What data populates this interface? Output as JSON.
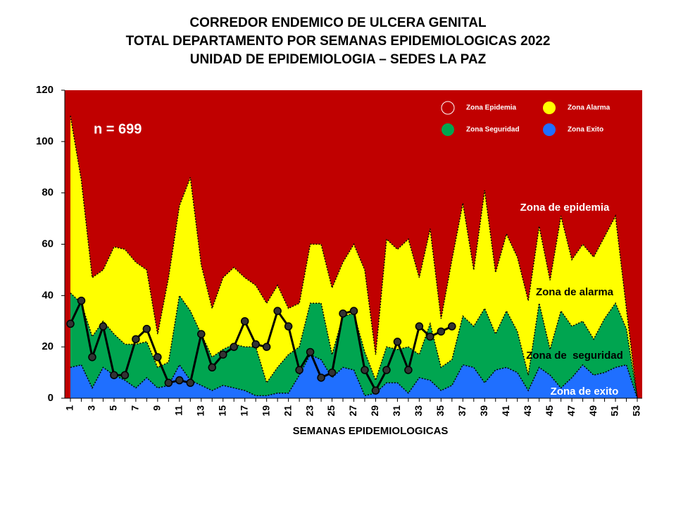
{
  "chart_data": {
    "type": "area",
    "title": [
      "CORREDOR ENDEMICO DE ULCERA GENITAL",
      "TOTAL DEPARTAMENTO POR SEMANAS EPIDEMIOLOGICAS 2022",
      "UNIDAD DE EPIDEMIOLOGIA – SEDES LA PAZ"
    ],
    "x_label": "SEMANAS EPIDEMIOLOGICAS",
    "categories": [
      "1",
      null,
      "3",
      null,
      "5",
      null,
      "7",
      null,
      "9",
      null,
      "11",
      null,
      "13",
      null,
      "15",
      null,
      "17",
      null,
      "19",
      null,
      "21",
      null,
      "23",
      null,
      "25",
      null,
      "27",
      null,
      "29",
      null,
      "31",
      null,
      "33",
      null,
      "35",
      null,
      "37",
      null,
      "39",
      null,
      "41",
      null,
      "43",
      null,
      "45",
      null,
      "47",
      null,
      "49",
      null,
      "51",
      null,
      "53"
    ],
    "background": {
      "name": "Zona Epidemia",
      "color": "#c00000"
    },
    "series": [
      {
        "name": "Zona Alarma",
        "color": "#ffff00",
        "values": [
          110,
          85,
          47,
          50,
          59,
          58,
          53,
          50,
          25,
          47,
          75,
          86,
          52,
          35,
          47,
          51,
          47,
          44,
          37,
          44,
          35,
          37,
          60,
          60,
          43,
          53,
          60,
          50,
          17,
          62,
          58,
          62,
          47,
          66,
          31,
          54,
          76,
          50,
          81,
          49,
          64,
          55,
          38,
          67,
          46,
          71,
          54,
          60,
          55,
          63,
          71,
          35,
          0
        ]
      },
      {
        "name": "Zona Seguridad",
        "color": "#00a550",
        "values": [
          41,
          37,
          24,
          30,
          25,
          21,
          21,
          22,
          12,
          14,
          40,
          34,
          25,
          16,
          19,
          21,
          20,
          20,
          6,
          12,
          17,
          20,
          37,
          37,
          17,
          32,
          33,
          18,
          7,
          20,
          19,
          20,
          17,
          29,
          12,
          15,
          32,
          28,
          35,
          25,
          34,
          26,
          9,
          37,
          19,
          34,
          28,
          30,
          23,
          31,
          37,
          27,
          0
        ]
      },
      {
        "name": "Zona Exito",
        "color": "#1f6fff",
        "values": [
          12,
          13,
          4,
          12,
          9,
          7,
          4,
          8,
          4,
          5,
          13,
          7,
          5,
          3,
          5,
          4,
          3,
          1,
          1,
          2,
          2,
          9,
          17,
          15,
          8,
          12,
          11,
          1,
          2,
          6,
          6,
          2,
          8,
          7,
          3,
          5,
          13,
          12,
          6,
          11,
          12,
          10,
          3,
          12,
          9,
          4,
          8,
          13,
          9,
          10,
          12,
          13,
          0
        ]
      }
    ],
    "cases": {
      "color": "#000000",
      "values": [
        29,
        38,
        16,
        28,
        9,
        9,
        23,
        27,
        16,
        6,
        7,
        6,
        25,
        12,
        17,
        20,
        30,
        21,
        20,
        34,
        28,
        11,
        18,
        8,
        10,
        33,
        34,
        11,
        3,
        11,
        22,
        11,
        28,
        24,
        26,
        28,
        null,
        null,
        null,
        null,
        null,
        null,
        null,
        null,
        null,
        null,
        null,
        null,
        null,
        null,
        null,
        null,
        null
      ]
    },
    "ylim": [
      0,
      120
    ],
    "yticks": [
      0,
      20,
      40,
      60,
      80,
      100,
      120
    ],
    "grid": false,
    "legend": "upper right",
    "annotations": [
      "n = 699",
      "Zona de epidemia",
      "Zona de alarma",
      "Zona de  seguridad",
      "Zona de exito"
    ]
  }
}
